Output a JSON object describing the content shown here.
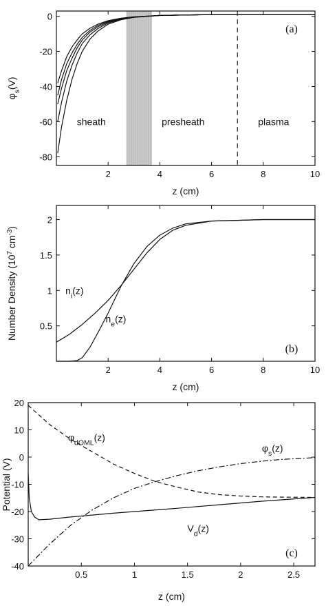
{
  "chart_data": [
    {
      "type": "line",
      "panel_label": "(a)",
      "xlabel": "z (cm)",
      "ylabel": "φs(V)",
      "xlim": [
        0,
        10
      ],
      "ylim": [
        -85,
        3
      ],
      "xticks": [
        2,
        4,
        6,
        8,
        10
      ],
      "yticks": [
        0,
        -20,
        -40,
        -60,
        -80
      ],
      "shaded_region": [
        2.7,
        3.7
      ],
      "boundary_line_x": 7.0,
      "region_labels": [
        {
          "text": "sheath",
          "x": 1.35,
          "y": -62
        },
        {
          "text": "presheath",
          "x": 4.9,
          "y": -62
        },
        {
          "text": "plasma",
          "x": 8.4,
          "y": -62
        }
      ],
      "series": [
        {
          "x": [
            0.05,
            0.2,
            0.4,
            0.6,
            0.8,
            1.0,
            1.3,
            1.6,
            2.0,
            2.5,
            3.0,
            4.0,
            6.0,
            10.0
          ],
          "y": [
            -78,
            -63,
            -48,
            -36,
            -27,
            -20,
            -13,
            -8.5,
            -4.5,
            -2.0,
            -0.6,
            0.5,
            1.0,
            1.0
          ]
        },
        {
          "x": [
            0.05,
            0.2,
            0.4,
            0.6,
            0.8,
            1.0,
            1.3,
            1.6,
            2.0,
            2.5,
            3.0,
            4.0,
            6.0,
            10.0
          ],
          "y": [
            -60,
            -49,
            -37,
            -28,
            -21,
            -15.5,
            -10.5,
            -7,
            -3.8,
            -1.7,
            -0.5,
            0.5,
            1.0,
            1.0
          ]
        },
        {
          "x": [
            0.05,
            0.2,
            0.4,
            0.6,
            0.8,
            1.0,
            1.3,
            1.6,
            2.0,
            2.5,
            3.0,
            4.0,
            6.0,
            10.0
          ],
          "y": [
            -50,
            -41,
            -31,
            -24,
            -18,
            -13.5,
            -9,
            -6,
            -3.3,
            -1.5,
            -0.5,
            0.5,
            1.0,
            1.0
          ]
        },
        {
          "x": [
            0.05,
            0.2,
            0.4,
            0.6,
            0.8,
            1.0,
            1.3,
            1.6,
            2.0,
            2.5,
            3.0,
            4.0,
            6.0,
            10.0
          ],
          "y": [
            -45,
            -36,
            -27,
            -21,
            -16,
            -12,
            -8,
            -5.2,
            -2.9,
            -1.3,
            -0.4,
            0.5,
            1.0,
            1.0
          ]
        },
        {
          "x": [
            0.05,
            0.2,
            0.4,
            0.6,
            0.8,
            1.0,
            1.3,
            1.6,
            2.0,
            2.5,
            3.0,
            4.0,
            6.0,
            10.0
          ],
          "y": [
            -38,
            -31,
            -23,
            -17.5,
            -13.5,
            -10,
            -6.8,
            -4.5,
            -2.5,
            -1.1,
            -0.3,
            0.5,
            1.0,
            1.0
          ]
        }
      ]
    },
    {
      "type": "line",
      "panel_label": "(b)",
      "xlabel": "z (cm)",
      "ylabel": "Number Density (10⁷ cm⁻³)",
      "xlim": [
        0,
        10
      ],
      "ylim": [
        0,
        2.2
      ],
      "xticks": [
        2,
        4,
        6,
        8,
        10
      ],
      "yticks": [
        0.5,
        1,
        1.5,
        2
      ],
      "series": [
        {
          "name": "ni(z)",
          "x": [
            0,
            0.5,
            1.0,
            1.5,
            2.0,
            2.5,
            3.0,
            3.5,
            4.0,
            4.5,
            5.0,
            6.0,
            7.0,
            8.0,
            10.0
          ],
          "y": [
            0.27,
            0.38,
            0.52,
            0.68,
            0.86,
            1.07,
            1.3,
            1.53,
            1.72,
            1.85,
            1.92,
            1.98,
            1.99,
            2.0,
            2.0
          ]
        },
        {
          "name": "ne(z)",
          "x": [
            0,
            0.5,
            0.8,
            1.0,
            1.3,
            1.6,
            2.0,
            2.5,
            3.0,
            3.5,
            4.0,
            4.5,
            5.0,
            6.0,
            7.0,
            8.0,
            10.0
          ],
          "y": [
            0.0,
            0.0,
            0.01,
            0.05,
            0.2,
            0.4,
            0.68,
            1.06,
            1.38,
            1.62,
            1.78,
            1.88,
            1.94,
            1.98,
            1.99,
            2.0,
            2.0
          ]
        }
      ],
      "series_labels": [
        {
          "text": "ni(z)",
          "x": 0.7,
          "y": 0.95
        },
        {
          "text": "ne(z)",
          "x": 2.3,
          "y": 0.55
        }
      ]
    },
    {
      "type": "line",
      "panel_label": "(c)",
      "xlabel": "z (cm)",
      "ylabel": "Potential (V)",
      "xlim": [
        0,
        2.7
      ],
      "ylim": [
        -40,
        20
      ],
      "xticks": [
        0.5,
        1,
        1.5,
        2,
        2.5
      ],
      "yticks": [
        20,
        10,
        0,
        -10,
        -20,
        -30,
        -40
      ],
      "series": [
        {
          "name": "φdOML(z)",
          "style": "dashed",
          "x": [
            0,
            0.2,
            0.4,
            0.6,
            0.8,
            1.0,
            1.2,
            1.4,
            1.6,
            1.8,
            2.0,
            2.2,
            2.4,
            2.7
          ],
          "y": [
            19,
            12,
            6.5,
            2,
            -2.5,
            -6,
            -9,
            -11,
            -12.8,
            -13.8,
            -14.3,
            -14.6,
            -14.7,
            -14.8
          ]
        },
        {
          "name": "φs(z)",
          "style": "dashdot",
          "x": [
            0,
            0.2,
            0.4,
            0.6,
            0.8,
            1.0,
            1.2,
            1.4,
            1.6,
            1.8,
            2.0,
            2.2,
            2.4,
            2.7
          ],
          "y": [
            -40,
            -32,
            -25,
            -19.5,
            -15,
            -11.5,
            -9,
            -6.8,
            -5,
            -3.6,
            -2.4,
            -1.5,
            -0.8,
            -0.2
          ]
        },
        {
          "name": "Vd(z)",
          "style": "solid",
          "x": [
            0,
            0.01,
            0.03,
            0.06,
            0.1,
            0.2,
            0.4,
            0.6,
            0.8,
            1.0,
            1.4,
            1.8,
            2.2,
            2.7
          ],
          "y": [
            -6,
            -15,
            -20,
            -22,
            -23,
            -22.8,
            -22,
            -21.3,
            -20.6,
            -20,
            -18.8,
            -17.5,
            -16.2,
            -14.8
          ]
        }
      ],
      "series_labels": [
        {
          "text": "φdOML(z)",
          "x": 0.55,
          "y": 6
        },
        {
          "text": "φs(z)",
          "x": 2.3,
          "y": 2
        },
        {
          "text": "Vd(z)",
          "x": 1.6,
          "y": -27.5
        }
      ]
    }
  ]
}
